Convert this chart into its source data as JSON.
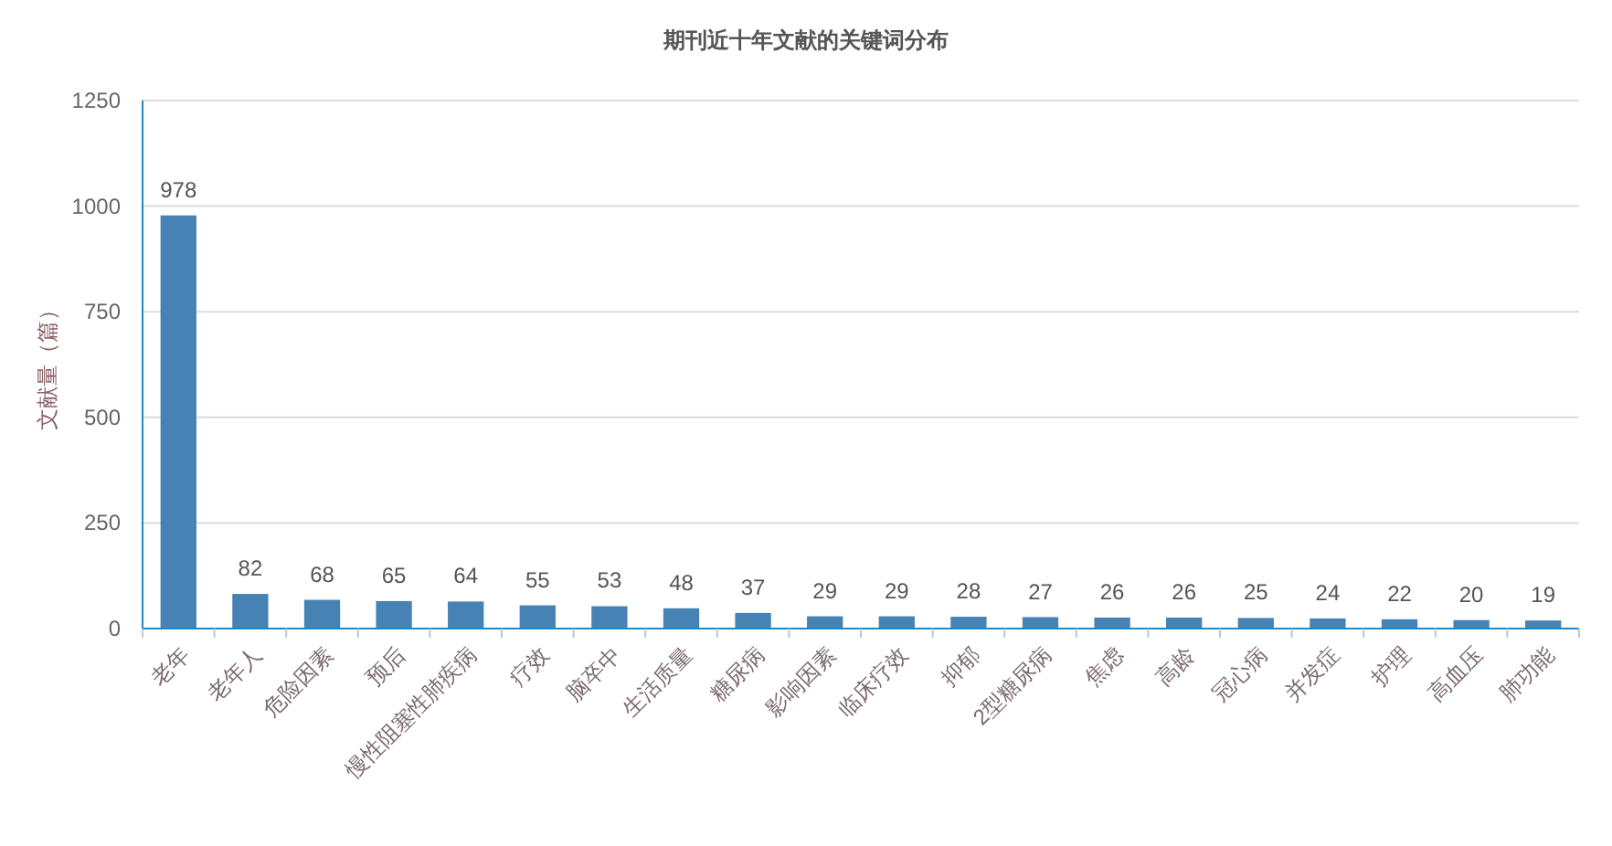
{
  "chart_data": {
    "type": "bar",
    "title": "期刊近十年文献的关键词分布",
    "ylabel": "文献量（篇）",
    "categories": [
      "老年",
      "老年人",
      "危险因素",
      "预后",
      "慢性阻塞性肺疾病",
      "疗效",
      "脑卒中",
      "生活质量",
      "糖尿病",
      "影响因素",
      "临床疗效",
      "抑郁",
      "2型糖尿病",
      "焦虑",
      "高龄",
      "冠心病",
      "并发症",
      "护理",
      "高血压",
      "肺功能"
    ],
    "values": [
      978,
      82,
      68,
      65,
      64,
      55,
      53,
      48,
      37,
      29,
      29,
      28,
      27,
      26,
      26,
      25,
      24,
      22,
      20,
      19
    ],
    "color": "#4682b4",
    "ylim": [
      0,
      1250
    ],
    "yticks": [
      0,
      250,
      500,
      750,
      1000,
      1250
    ],
    "grid": "y",
    "data_labels": true
  }
}
